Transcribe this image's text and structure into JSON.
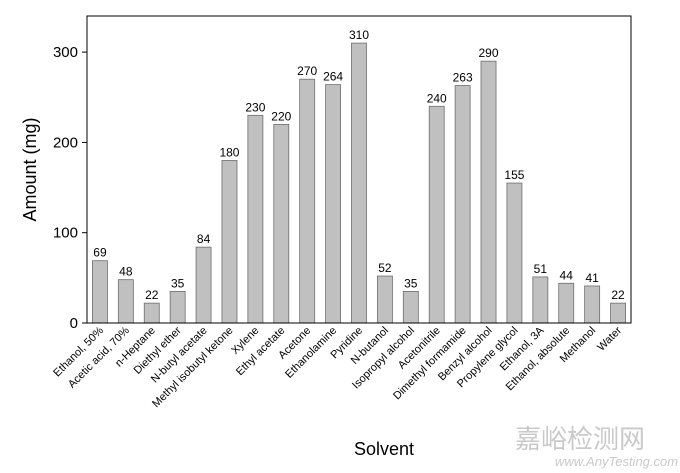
{
  "chart_data": {
    "type": "bar",
    "title": "",
    "xlabel": "Solvent",
    "ylabel": "Amount (mg)",
    "ylim": [
      0,
      340
    ],
    "yticks": [
      0,
      100,
      200,
      300
    ],
    "grid": false,
    "bar_color": "#c0c0c0",
    "categories": [
      "Ethanol, 50%",
      "Acetic acid, 70%",
      "n-Heptane",
      "Diethyl ether",
      "N-butyl acetate",
      "Methyl isobutyl ketone",
      "Xylene",
      "Ethyl acetate",
      "Acetone",
      "Ethanolamine",
      "Pyridine",
      "N-butanol",
      "Isopropyl alcohol",
      "Acetonitrile",
      "Dimethyl formamide",
      "Benzyl alcohol",
      "Propylene glycol",
      "Ethanol, 3A",
      "Ethanol, absolute",
      "Methanol",
      "Water"
    ],
    "values": [
      69,
      48,
      22,
      35,
      84,
      180,
      230,
      220,
      270,
      264,
      310,
      52,
      35,
      240,
      263,
      290,
      155,
      51,
      44,
      41,
      22
    ]
  },
  "watermark": {
    "text_cn": "嘉峪检测网",
    "text_en": "www.AnyTesting.com"
  }
}
